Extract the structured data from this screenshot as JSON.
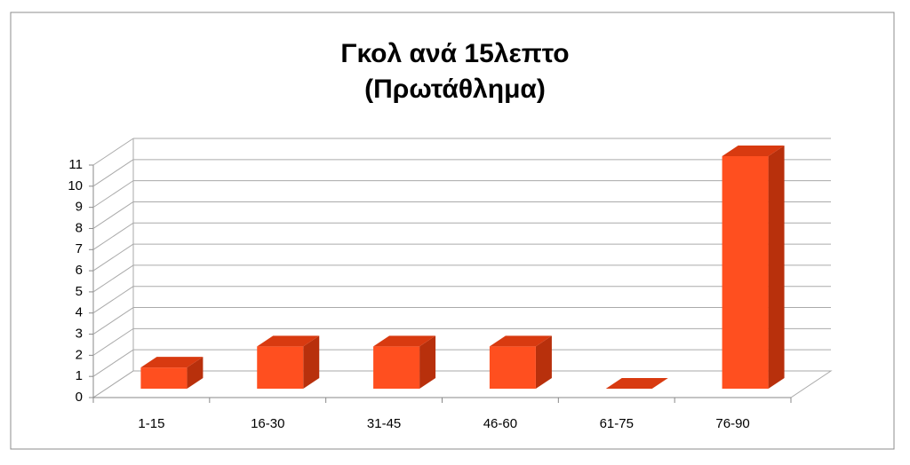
{
  "chart_data": {
    "type": "bar3d",
    "title": "Γκολ ανά 15λεπτο",
    "subtitle": "(Πρωτάθλημα)",
    "categories": [
      "1-15",
      "16-30",
      "31-45",
      "46-60",
      "61-75",
      "76-90"
    ],
    "values": [
      1,
      2,
      2,
      2,
      0,
      11
    ],
    "color": "#ff4f1f",
    "ylim": [
      0,
      11
    ],
    "yticks": [
      0,
      1,
      2,
      3,
      4,
      5,
      6,
      7,
      8,
      9,
      10,
      11
    ],
    "grid": true
  }
}
